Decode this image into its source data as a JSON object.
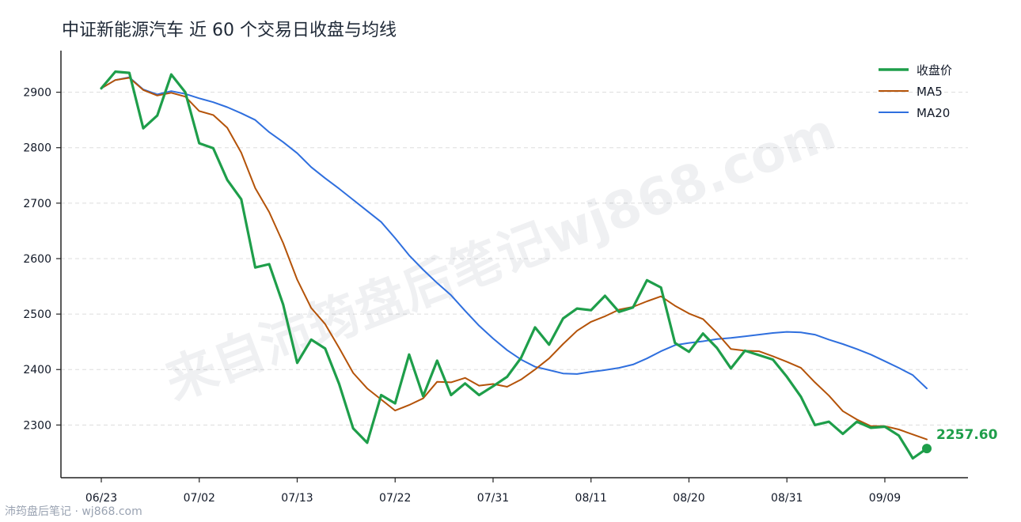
{
  "title": "中证新能源汽车 近 60 个交易日收盘与均线",
  "watermark": "来自沛筠盘后笔记wj868.com",
  "footer": "沛筠盘后笔记 · wj868.com",
  "colors": {
    "close": "#1e9e4a",
    "ma5": "#b45309",
    "ma20": "#2f6fde",
    "grid": "#dddddd",
    "axis": "#222222"
  },
  "chart_data": {
    "type": "line",
    "title": "中证新能源汽车 近 60 个交易日收盘与均线",
    "x_ticks": [
      "06/23",
      "07/02",
      "07/13",
      "07/22",
      "07/31",
      "08/11",
      "08/20",
      "08/31",
      "09/09"
    ],
    "x_tick_index": [
      0,
      7,
      14,
      21,
      28,
      35,
      42,
      49,
      56
    ],
    "ylim": [
      2205,
      2975
    ],
    "yticks": [
      2300,
      2400,
      2500,
      2600,
      2700,
      2800,
      2900
    ],
    "grid": "horizontal dashed",
    "legend": "top-right",
    "last_value_label": "2257.60",
    "series": [
      {
        "name": "收盘价",
        "values": [
          2907,
          2937,
          2935,
          2835,
          2858,
          2932,
          2900,
          2808,
          2799,
          2742,
          2707,
          2584,
          2590,
          2517,
          2412,
          2454,
          2438,
          2374,
          2294,
          2268,
          2354,
          2339,
          2427,
          2352,
          2416,
          2354,
          2375,
          2354,
          2370,
          2387,
          2421,
          2476,
          2445,
          2492,
          2510,
          2507,
          2533,
          2504,
          2512,
          2561,
          2548,
          2448,
          2432,
          2465,
          2439,
          2402,
          2434,
          2426,
          2418,
          2387,
          2351,
          2300,
          2306,
          2284,
          2306,
          2295,
          2297,
          2281,
          2240,
          2257.6
        ]
      },
      {
        "name": "MA5",
        "values": [
          2907,
          2922,
          2926,
          2904,
          2894,
          2899,
          2892,
          2866,
          2859,
          2836,
          2791,
          2727,
          2684,
          2628,
          2562,
          2511,
          2482,
          2439,
          2394,
          2366,
          2346,
          2326,
          2336,
          2348,
          2378,
          2377,
          2385,
          2371,
          2374,
          2369,
          2382,
          2400,
          2420,
          2446,
          2470,
          2486,
          2496,
          2508,
          2513,
          2523,
          2532,
          2515,
          2501,
          2491,
          2466,
          2437,
          2434,
          2433,
          2424,
          2414,
          2403,
          2377,
          2353,
          2325,
          2310,
          2298,
          2298,
          2292,
          2283,
          2274
        ]
      },
      {
        "name": "MA20",
        "values": [
          2907,
          2922,
          2927,
          2905,
          2896,
          2902,
          2897,
          2889,
          2882,
          2873,
          2862,
          2850,
          2828,
          2810,
          2790,
          2765,
          2745,
          2726,
          2706,
          2686,
          2666,
          2637,
          2606,
          2580,
          2556,
          2534,
          2506,
          2479,
          2456,
          2435,
          2418,
          2405,
          2399,
          2393,
          2392,
          2396,
          2399,
          2403,
          2409,
          2420,
          2433,
          2444,
          2448,
          2451,
          2455,
          2457,
          2460,
          2463,
          2466,
          2468,
          2467,
          2463,
          2454,
          2446,
          2437,
          2427,
          2415,
          2403,
          2390,
          2366
        ]
      }
    ]
  }
}
